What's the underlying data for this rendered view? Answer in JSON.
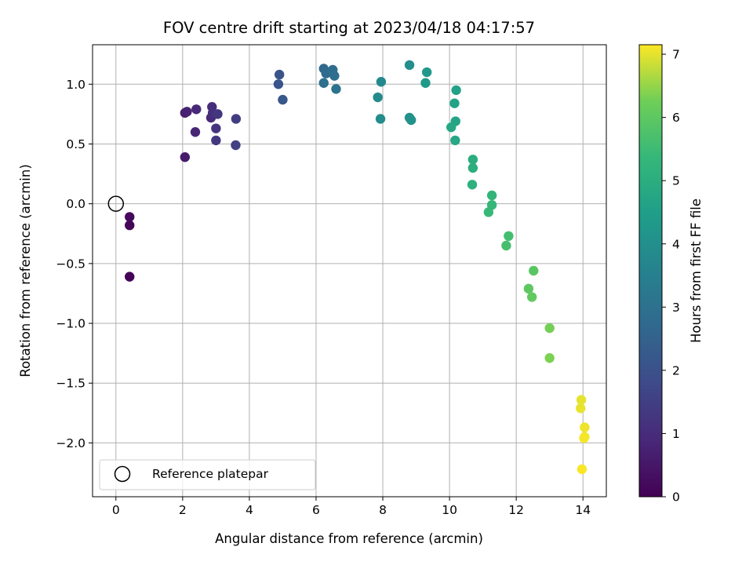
{
  "chart_data": {
    "type": "scatter",
    "title": "FOV centre drift starting at 2023/04/18 04:17:57",
    "xlabel": "Angular distance from reference (arcmin)",
    "ylabel": "Rotation from reference (arcmin)",
    "xlim": [
      -0.7,
      14.7
    ],
    "ylim": [
      -2.45,
      1.33
    ],
    "xticks": [
      0,
      2,
      4,
      6,
      8,
      10,
      12,
      14
    ],
    "xtick_labels": [
      "0",
      "2",
      "4",
      "6",
      "8",
      "10",
      "12",
      "14"
    ],
    "yticks": [
      1.0,
      0.5,
      0.0,
      -0.5,
      -1.0,
      -1.5,
      -2.0
    ],
    "ytick_labels": [
      "1.0",
      "0.5",
      "0.0",
      "−0.5",
      "−1.0",
      "−1.5",
      "−2.0"
    ],
    "grid": true,
    "colormap": "viridis",
    "colorbar": {
      "label": "Hours from first FF file",
      "range": [
        0,
        7.15
      ],
      "ticks": [
        0,
        1,
        2,
        3,
        4,
        5,
        6,
        7
      ],
      "tick_labels": [
        "0",
        "1",
        "2",
        "3",
        "4",
        "5",
        "6",
        "7"
      ]
    },
    "legend": {
      "position": "lower-left",
      "entries": [
        "Reference platepar"
      ]
    },
    "reference_point": {
      "x": 0,
      "y": 0
    },
    "points": [
      {
        "x": 0.41,
        "y": -0.61,
        "c": 0.05
      },
      {
        "x": 0.41,
        "y": -0.18,
        "c": 0.12
      },
      {
        "x": 0.41,
        "y": -0.11,
        "c": 0.2
      },
      {
        "x": 2.07,
        "y": 0.39,
        "c": 0.6
      },
      {
        "x": 2.07,
        "y": 0.76,
        "c": 0.7
      },
      {
        "x": 2.13,
        "y": 0.77,
        "c": 0.75
      },
      {
        "x": 2.38,
        "y": 0.6,
        "c": 0.85
      },
      {
        "x": 2.41,
        "y": 0.79,
        "c": 0.9
      },
      {
        "x": 2.85,
        "y": 0.72,
        "c": 1.0
      },
      {
        "x": 2.88,
        "y": 0.81,
        "c": 1.05
      },
      {
        "x": 2.9,
        "y": 0.76,
        "c": 1.1
      },
      {
        "x": 3.0,
        "y": 0.63,
        "c": 1.2
      },
      {
        "x": 3.05,
        "y": 0.75,
        "c": 1.25
      },
      {
        "x": 3.0,
        "y": 0.53,
        "c": 1.3
      },
      {
        "x": 3.6,
        "y": 0.71,
        "c": 1.45
      },
      {
        "x": 3.59,
        "y": 0.49,
        "c": 1.55
      },
      {
        "x": 4.9,
        "y": 1.08,
        "c": 2.05
      },
      {
        "x": 4.87,
        "y": 1.0,
        "c": 2.1
      },
      {
        "x": 5.0,
        "y": 0.87,
        "c": 2.2
      },
      {
        "x": 6.23,
        "y": 1.13,
        "c": 2.7
      },
      {
        "x": 6.3,
        "y": 1.09,
        "c": 2.8
      },
      {
        "x": 6.5,
        "y": 1.12,
        "c": 2.85
      },
      {
        "x": 6.55,
        "y": 1.07,
        "c": 2.9
      },
      {
        "x": 6.23,
        "y": 1.01,
        "c": 2.95
      },
      {
        "x": 6.6,
        "y": 0.96,
        "c": 3.05
      },
      {
        "x": 7.95,
        "y": 1.02,
        "c": 3.8
      },
      {
        "x": 7.85,
        "y": 0.89,
        "c": 3.85
      },
      {
        "x": 7.93,
        "y": 0.71,
        "c": 3.9
      },
      {
        "x": 8.8,
        "y": 1.16,
        "c": 4.0
      },
      {
        "x": 8.8,
        "y": 0.72,
        "c": 4.05
      },
      {
        "x": 8.85,
        "y": 0.7,
        "c": 4.1
      },
      {
        "x": 9.32,
        "y": 1.1,
        "c": 4.3
      },
      {
        "x": 9.28,
        "y": 1.01,
        "c": 4.35
      },
      {
        "x": 10.2,
        "y": 0.95,
        "c": 4.6
      },
      {
        "x": 10.15,
        "y": 0.84,
        "c": 4.65
      },
      {
        "x": 10.18,
        "y": 0.69,
        "c": 4.7
      },
      {
        "x": 10.05,
        "y": 0.64,
        "c": 4.75
      },
      {
        "x": 10.17,
        "y": 0.53,
        "c": 4.8
      },
      {
        "x": 10.7,
        "y": 0.37,
        "c": 5.0
      },
      {
        "x": 10.7,
        "y": 0.3,
        "c": 5.05
      },
      {
        "x": 10.68,
        "y": 0.16,
        "c": 5.1
      },
      {
        "x": 11.27,
        "y": 0.07,
        "c": 5.3
      },
      {
        "x": 11.27,
        "y": -0.01,
        "c": 5.35
      },
      {
        "x": 11.17,
        "y": -0.07,
        "c": 5.4
      },
      {
        "x": 11.77,
        "y": -0.27,
        "c": 5.6
      },
      {
        "x": 11.7,
        "y": -0.35,
        "c": 5.65
      },
      {
        "x": 12.52,
        "y": -0.56,
        "c": 5.95
      },
      {
        "x": 12.37,
        "y": -0.71,
        "c": 6.0
      },
      {
        "x": 12.47,
        "y": -0.78,
        "c": 6.05
      },
      {
        "x": 13.0,
        "y": -1.04,
        "c": 6.3
      },
      {
        "x": 13.0,
        "y": -1.29,
        "c": 6.35
      },
      {
        "x": 13.95,
        "y": -1.64,
        "c": 7.0
      },
      {
        "x": 13.93,
        "y": -1.71,
        "c": 7.02
      },
      {
        "x": 14.05,
        "y": -1.87,
        "c": 7.05
      },
      {
        "x": 14.05,
        "y": -1.95,
        "c": 7.08
      },
      {
        "x": 14.03,
        "y": -1.96,
        "c": 7.1
      },
      {
        "x": 13.97,
        "y": -2.22,
        "c": 7.12
      }
    ]
  }
}
